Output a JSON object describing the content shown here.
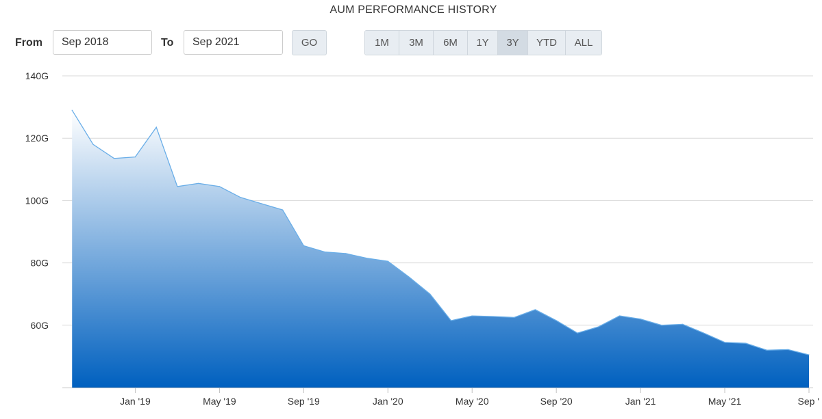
{
  "title": "AUM PERFORMANCE HISTORY",
  "controls": {
    "from_label": "From",
    "from_value": "Sep 2018",
    "to_label": "To",
    "to_value": "Sep 2021",
    "go_label": "GO",
    "ranges": [
      "1M",
      "3M",
      "6M",
      "1Y",
      "3Y",
      "YTD",
      "ALL"
    ],
    "active_range": "3Y"
  },
  "colors": {
    "line": "#6aaee8",
    "fill_top": "#ffffff",
    "fill_bottom": "#0060bf",
    "grid": "#d8d8d8"
  },
  "chart_data": {
    "type": "area",
    "title": "AUM PERFORMANCE HISTORY",
    "xlabel": "",
    "ylabel": "",
    "ylim": [
      40,
      140
    ],
    "y_ticks": [
      60,
      80,
      100,
      120,
      140
    ],
    "y_tick_labels": [
      "60G",
      "80G",
      "100G",
      "120G",
      "140G"
    ],
    "x_tick_labels": [
      "Jan '19",
      "May '19",
      "Sep '19",
      "Jan '20",
      "May '20",
      "Sep '20",
      "Jan '21",
      "May '21",
      "Sep '"
    ],
    "x_ticks": [
      "2019-01",
      "2019-05",
      "2019-09",
      "2020-01",
      "2020-05",
      "2020-09",
      "2021-01",
      "2021-05",
      "2021-09"
    ],
    "x_range": [
      "2018-09",
      "2021-09"
    ],
    "grid": true,
    "legend": "none",
    "series": [
      {
        "x": [
          "2018-10",
          "2018-11",
          "2018-12",
          "2019-01",
          "2019-02",
          "2019-03",
          "2019-04",
          "2019-05",
          "2019-06",
          "2019-07",
          "2019-08",
          "2019-09",
          "2019-10",
          "2019-11",
          "2019-12",
          "2020-01",
          "2020-02",
          "2020-03",
          "2020-04",
          "2020-05",
          "2020-06",
          "2020-07",
          "2020-08",
          "2020-09",
          "2020-10",
          "2020-11",
          "2020-12",
          "2021-01",
          "2021-02",
          "2021-03",
          "2021-04",
          "2021-05",
          "2021-06",
          "2021-07",
          "2021-08",
          "2021-09"
        ],
        "values": [
          129,
          118,
          113.5,
          114,
          123.5,
          104.5,
          105.5,
          104.5,
          101,
          99,
          97,
          85.5,
          83.5,
          83,
          81.5,
          80.5,
          75.5,
          70,
          61.5,
          63,
          62.8,
          62.5,
          65,
          61.5,
          57.5,
          59.5,
          63,
          62,
          60,
          60.3,
          57.5,
          54.5,
          54.2,
          52,
          52.2,
          50.5
        ]
      }
    ]
  }
}
